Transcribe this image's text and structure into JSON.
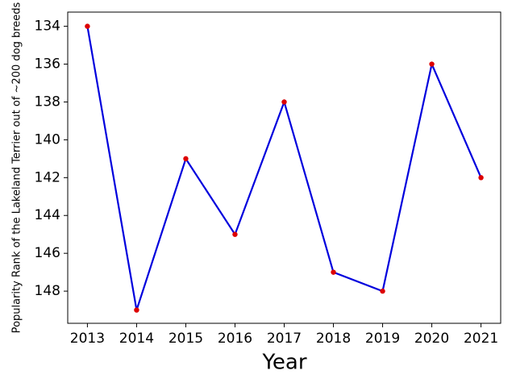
{
  "chart_data": {
    "type": "line",
    "x_label": "Year",
    "y_label": "Popularity Rank of the Lakeland Terrier out of ~200 dog breeds",
    "x": [
      2013,
      2014,
      2015,
      2016,
      2017,
      2018,
      2019,
      2020,
      2021
    ],
    "series": [
      {
        "color": "#0000dd",
        "marker_color": "#dd0000",
        "values": [
          134,
          149,
          141,
          145,
          138,
          147,
          148,
          136,
          142
        ]
      }
    ],
    "xlim": [
      2012.6,
      2021.4
    ],
    "xticks": [
      2013,
      2014,
      2015,
      2016,
      2017,
      2018,
      2019,
      2020,
      2021
    ],
    "ylim": [
      149.7,
      133.25
    ],
    "yticks": [
      134,
      136,
      138,
      140,
      142,
      144,
      146,
      148
    ]
  }
}
